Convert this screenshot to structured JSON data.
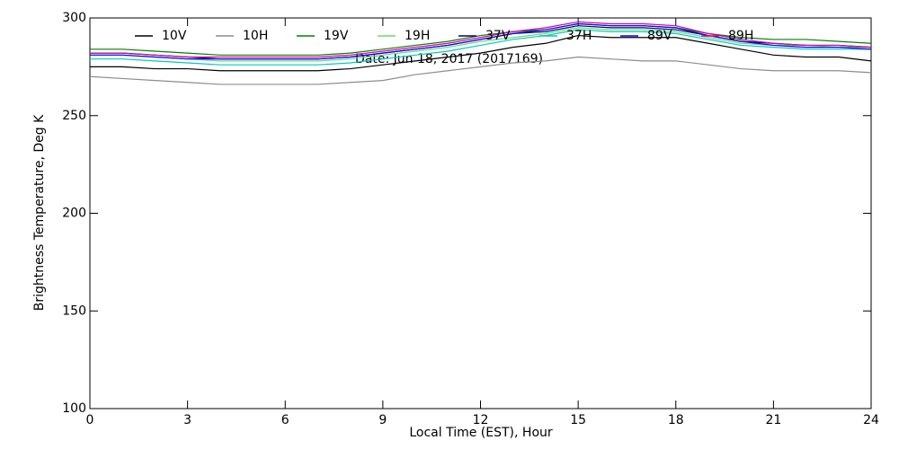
{
  "chart_data": {
    "type": "line",
    "xlabel": "Local Time (EST), Hour",
    "ylabel": "Brightness Temperature, Deg K",
    "annotation": "Date: Jun 18, 2017 (2017169)",
    "x": [
      0,
      1,
      2,
      3,
      4,
      5,
      6,
      7,
      8,
      9,
      10,
      11,
      12,
      13,
      14,
      15,
      16,
      17,
      18,
      19,
      20,
      21,
      22,
      23,
      24
    ],
    "xlim": [
      0,
      24
    ],
    "xticks": [
      0,
      3,
      6,
      9,
      12,
      15,
      18,
      21,
      24
    ],
    "ylim": [
      100,
      300
    ],
    "yticks": [
      100,
      150,
      200,
      250,
      300
    ],
    "legend": "top",
    "series": [
      {
        "name": "10V",
        "color": "#000000",
        "values": [
          275,
          275,
          274,
          274,
          273,
          273,
          273,
          273,
          274,
          276,
          278,
          280,
          282,
          285,
          287,
          291,
          290,
          290,
          290,
          287,
          284,
          281,
          280,
          280,
          278
        ]
      },
      {
        "name": "10H",
        "color": "#8c8c8c",
        "values": [
          270,
          269,
          268,
          267,
          266,
          266,
          266,
          266,
          267,
          268,
          271,
          273,
          275,
          277,
          278,
          280,
          279,
          278,
          278,
          276,
          274,
          273,
          273,
          273,
          272
        ]
      },
      {
        "name": "19V",
        "color": "#008000",
        "values": [
          284,
          284,
          283,
          282,
          281,
          281,
          281,
          281,
          282,
          284,
          286,
          288,
          291,
          293,
          294,
          297,
          296,
          296,
          295,
          292,
          290,
          289,
          289,
          288,
          287
        ]
      },
      {
        "name": "19H",
        "color": "#66dd66",
        "values": [
          281,
          281,
          280,
          279,
          278,
          278,
          278,
          278,
          279,
          281,
          283,
          285,
          288,
          290,
          292,
          295,
          294,
          294,
          293,
          290,
          287,
          286,
          286,
          285,
          285
        ]
      },
      {
        "name": "37V",
        "color": "#000080",
        "values": [
          282,
          282,
          281,
          280,
          279,
          279,
          279,
          279,
          280,
          282,
          284,
          286,
          289,
          292,
          293,
          296,
          295,
          295,
          294,
          291,
          288,
          287,
          286,
          286,
          285
        ]
      },
      {
        "name": "37H",
        "color": "#00c8c8",
        "values": [
          279,
          279,
          278,
          277,
          276,
          276,
          276,
          276,
          277,
          279,
          281,
          283,
          286,
          289,
          291,
          294,
          293,
          293,
          292,
          289,
          286,
          285,
          284,
          284,
          284
        ]
      },
      {
        "name": "89V",
        "color": "#0000ff",
        "values": [
          281,
          281,
          280,
          279,
          279,
          279,
          279,
          279,
          280,
          282,
          284,
          286,
          289,
          292,
          294,
          297,
          296,
          296,
          295,
          291,
          288,
          286,
          285,
          285,
          284
        ]
      },
      {
        "name": "89H",
        "color": "#e0008c",
        "values": [
          282,
          282,
          281,
          280,
          280,
          280,
          280,
          280,
          281,
          283,
          285,
          287,
          290,
          293,
          295,
          298,
          297,
          297,
          296,
          292,
          289,
          287,
          286,
          286,
          285
        ]
      }
    ]
  }
}
